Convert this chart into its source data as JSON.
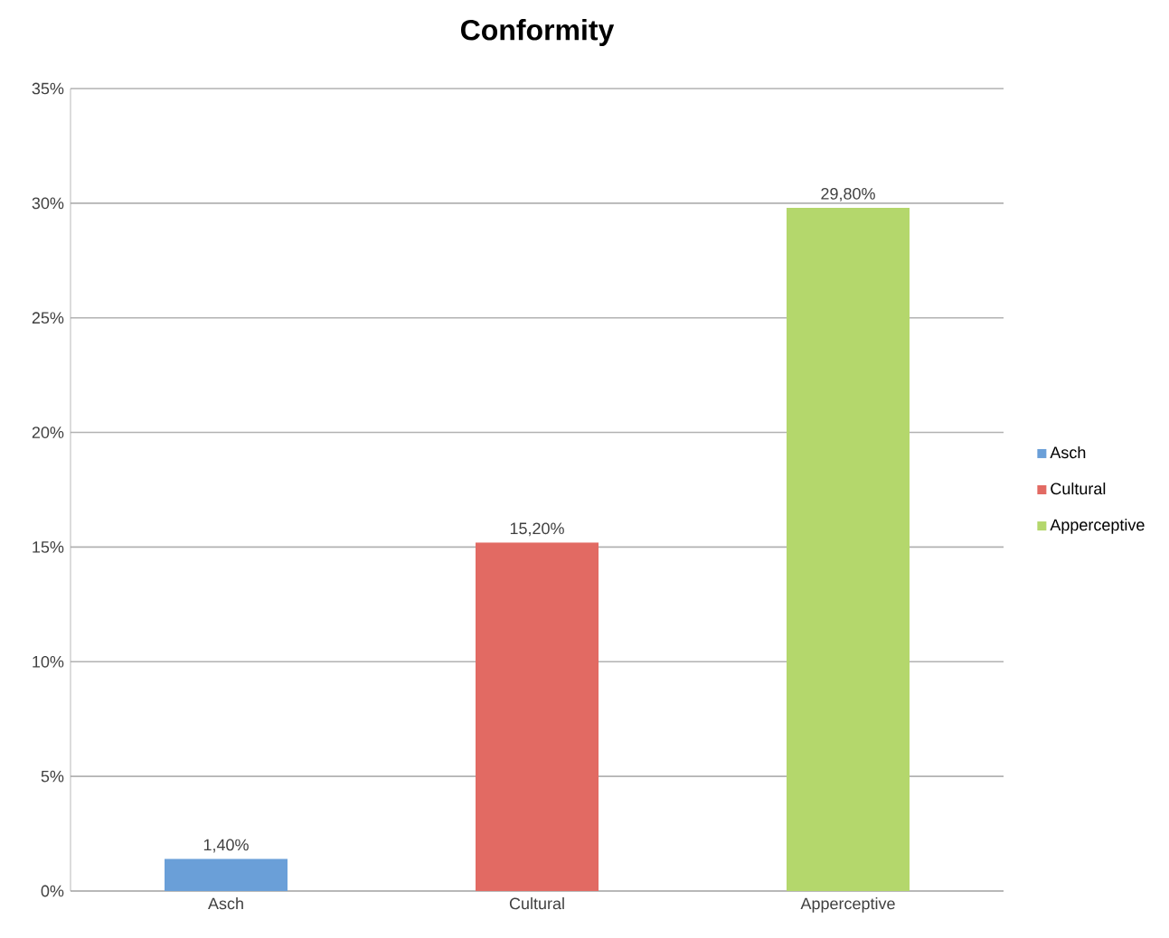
{
  "chart_data": {
    "type": "bar",
    "title": "Conformity",
    "categories": [
      "Asch",
      "Cultural",
      "Apperceptive"
    ],
    "series": [
      {
        "name": "Asch",
        "color": "#6a9fd8",
        "values": [
          1.4,
          null,
          null
        ],
        "value_labels": [
          "1,40%",
          null,
          null
        ]
      },
      {
        "name": "Cultural",
        "color": "#e26a63",
        "values": [
          null,
          15.2,
          null
        ],
        "value_labels": [
          null,
          "15,20%",
          null
        ]
      },
      {
        "name": "Apperceptive",
        "color": "#b4d76c",
        "values": [
          null,
          null,
          29.8
        ],
        "value_labels": [
          null,
          null,
          "29,80%"
        ]
      }
    ],
    "ylim": [
      0,
      35
    ],
    "yticks": [
      {
        "value": 0,
        "label": "0%"
      },
      {
        "value": 5,
        "label": "5%"
      },
      {
        "value": 10,
        "label": "10%"
      },
      {
        "value": 15,
        "label": "15%"
      },
      {
        "value": 20,
        "label": "20%"
      },
      {
        "value": 25,
        "label": "25%"
      },
      {
        "value": 30,
        "label": "30%"
      },
      {
        "value": 35,
        "label": "35%"
      }
    ],
    "grid": "y",
    "legend": "right"
  }
}
